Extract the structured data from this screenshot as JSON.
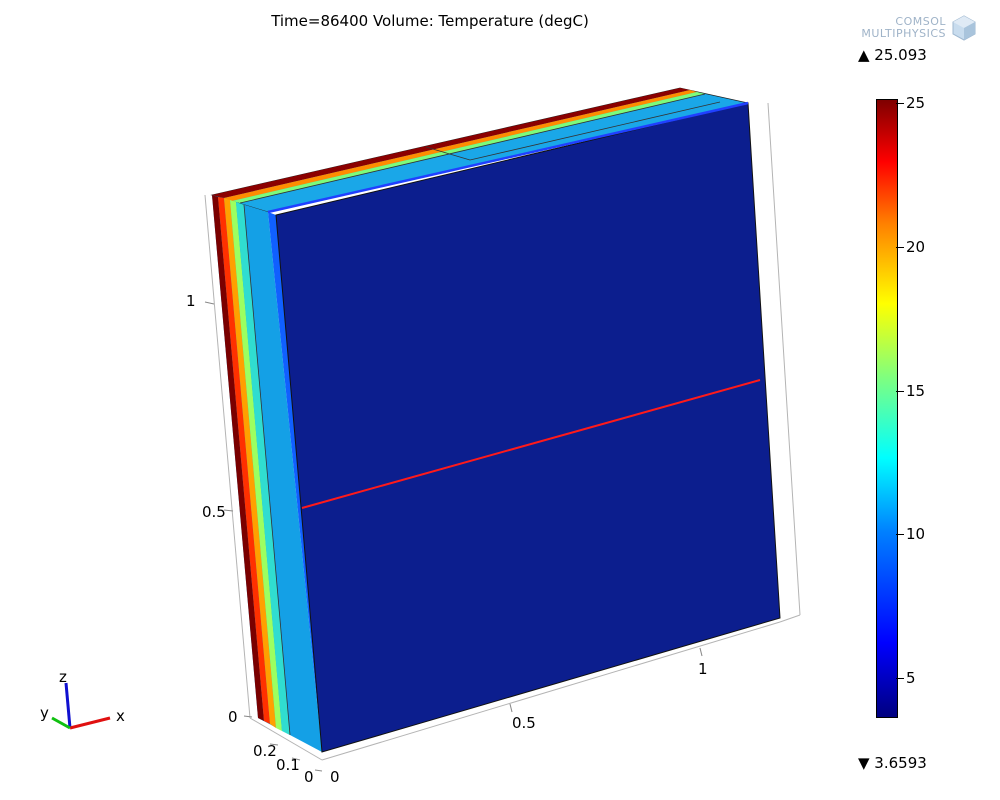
{
  "plot": {
    "title": "Time=86400  Volume: Temperature (degC)",
    "max_label": "▲ 25.093",
    "min_label": "▼ 3.6593"
  },
  "logo": {
    "line1": "COMSOL",
    "line2": "MULTIPHYSICS"
  },
  "colorbar": {
    "colormap": "rainbow",
    "range": [
      3.6593,
      25.093
    ],
    "ticks": [
      "25",
      "20",
      "15",
      "10",
      "5"
    ]
  },
  "axes": {
    "z_ticks": [
      "1",
      "0.5",
      "0"
    ],
    "x_ticks": [
      "1",
      "0.5",
      "0"
    ],
    "y_ticks": [
      "0.2",
      "0.1",
      "0"
    ]
  },
  "triad": {
    "x": "x",
    "y": "y",
    "z": "z"
  }
}
